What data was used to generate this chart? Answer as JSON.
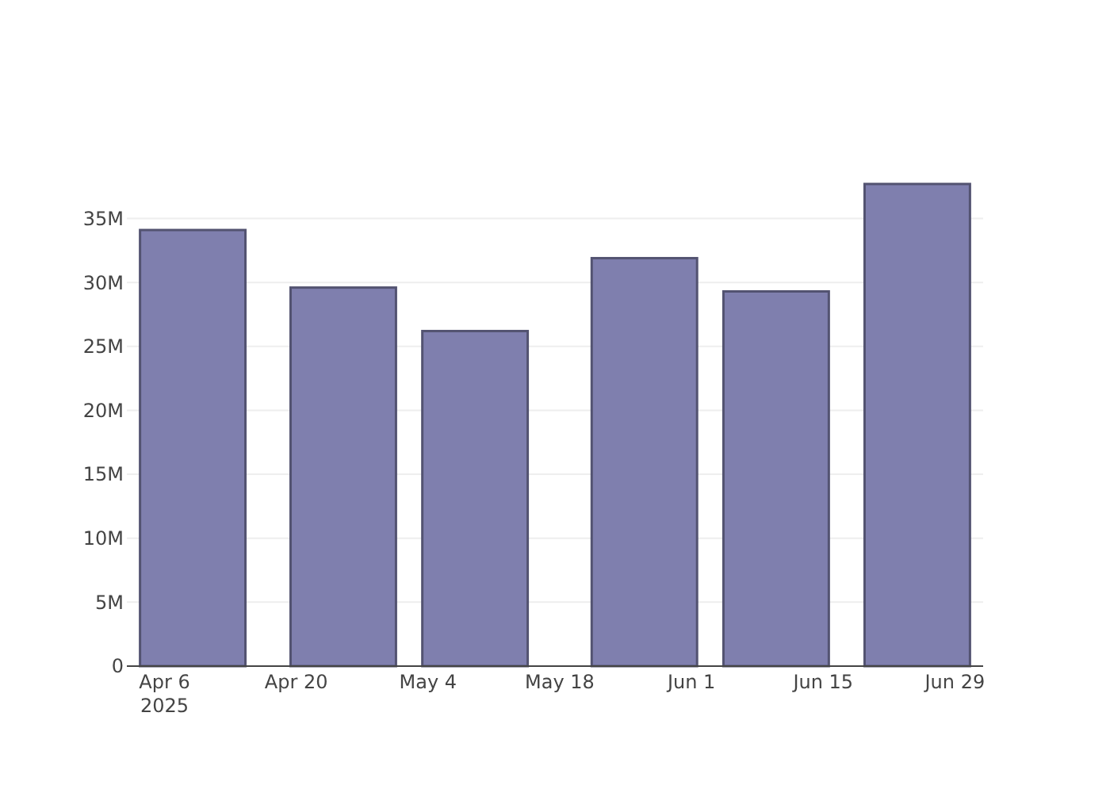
{
  "chart_data": {
    "type": "bar",
    "x": [
      "2025-04-09",
      "2025-04-25",
      "2025-05-09",
      "2025-05-27",
      "2025-06-10",
      "2025-06-25"
    ],
    "values": [
      34100000,
      29600000,
      26200000,
      31900000,
      29300000,
      37700000
    ],
    "color": "#7f7fae",
    "xlim": [
      "2025-04-02",
      "2025-07-02"
    ],
    "xticks": [
      {
        "value": "2025-04-06",
        "label": "Apr 6\n2025"
      },
      {
        "value": "2025-04-20",
        "label": "Apr 20"
      },
      {
        "value": "2025-05-04",
        "label": "May 4"
      },
      {
        "value": "2025-05-18",
        "label": "May 18"
      },
      {
        "value": "2025-06-01",
        "label": "Jun 1"
      },
      {
        "value": "2025-06-15",
        "label": "Jun 15"
      },
      {
        "value": "2025-06-29",
        "label": "Jun 29"
      }
    ],
    "ylim": [
      0,
      37700000
    ],
    "yticks": [
      {
        "value": 0,
        "label": "0"
      },
      {
        "value": 5000000,
        "label": "5M"
      },
      {
        "value": 10000000,
        "label": "10M"
      },
      {
        "value": 15000000,
        "label": "15M"
      },
      {
        "value": 20000000,
        "label": "20M"
      },
      {
        "value": 25000000,
        "label": "25M"
      },
      {
        "value": 30000000,
        "label": "30M"
      },
      {
        "value": 35000000,
        "label": "35M"
      }
    ],
    "grid": "y"
  }
}
